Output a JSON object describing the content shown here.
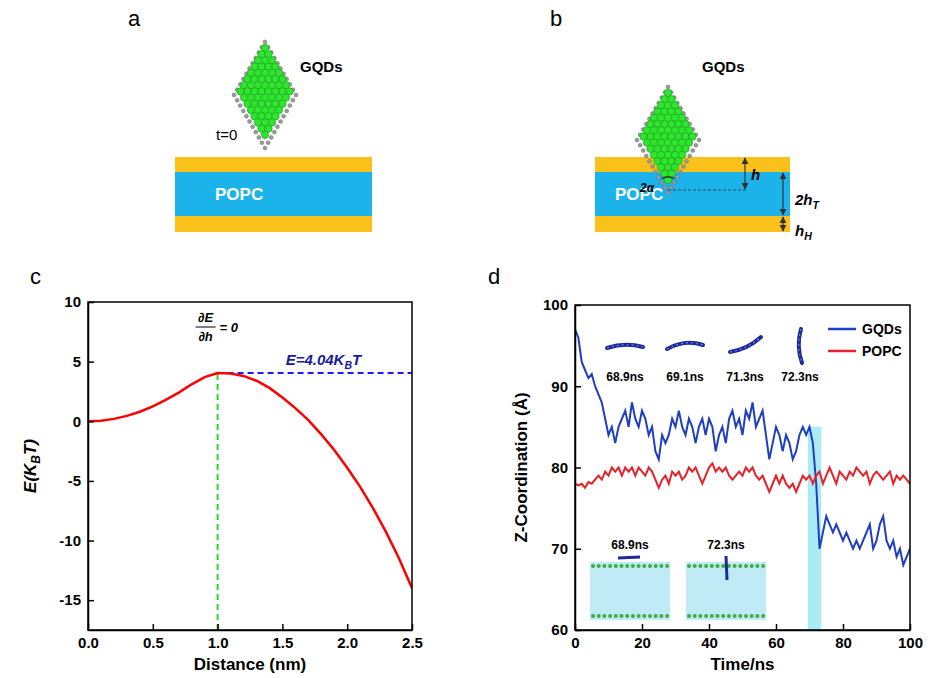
{
  "panel_labels": [
    "a",
    "b",
    "c",
    "d"
  ],
  "diagrams": [
    {
      "molecule": "GQDs",
      "time": "t=0",
      "membrane": "POPC"
    },
    {
      "molecule": "GQDs",
      "membrane": "POPC",
      "angle": "2α",
      "depth": "h",
      "thickness": [
        {
          "text": "2h"
        },
        {
          "text": "T",
          "sub": true
        }
      ],
      "head": [
        {
          "text": "h"
        },
        {
          "text": "H",
          "sub": true
        }
      ]
    }
  ],
  "chart_data": [
    {
      "type": "line",
      "xlabel": "Distance (nm)",
      "ylabel": [
        {
          "text": "E(K"
        },
        {
          "text": "B",
          "sub": true
        },
        {
          "text": "T)"
        }
      ],
      "x": [
        0,
        0.1,
        0.2,
        0.3,
        0.4,
        0.5,
        0.6,
        0.7,
        0.8,
        0.9,
        1.0,
        1.1,
        1.2,
        1.3,
        1.4,
        1.5,
        1.6,
        1.7,
        1.8,
        1.9,
        2.0,
        2.1,
        2.2,
        2.3,
        2.4,
        2.5
      ],
      "values": [
        0,
        0.05,
        0.2,
        0.45,
        0.8,
        1.25,
        1.8,
        2.4,
        3.1,
        3.7,
        4.04,
        4.0,
        3.8,
        3.4,
        2.8,
        2.0,
        1.1,
        0.1,
        -1.1,
        -2.4,
        -3.9,
        -5.5,
        -7.3,
        -9.3,
        -11.5,
        -14.0
      ],
      "color": "#ff0000",
      "xlim": [
        0,
        2.5
      ],
      "xticks": [
        {
          "value": 0,
          "label": "0.0"
        },
        0.5,
        {
          "value": 1,
          "label": "1.0"
        },
        1.5,
        {
          "value": 2,
          "label": "2.0"
        },
        2.5
      ],
      "ylim": [
        -17.5,
        10
      ],
      "yticks": [
        -15,
        -10,
        -5,
        0,
        5,
        10
      ],
      "vline": {
        "x": 1.0,
        "y": 4.04,
        "color": "#22dd22",
        "line_style": "dashed"
      },
      "hline": {
        "x": 1.0,
        "y": 4.04,
        "color": "#1a1aff",
        "line_style": "dashed"
      },
      "annotations": [
        {
          "numerator": "∂E",
          "denominator": "∂h",
          "text": "= 0"
        },
        {
          "segments": [
            {
              "text": "E=4.04K"
            },
            {
              "text": "B",
              "sub": true
            },
            {
              "text": "T"
            }
          ]
        }
      ]
    },
    {
      "type": "line",
      "xlabel": "Time/ns",
      "ylabel": "Z-Coordination (Å)",
      "x": [
        0,
        1,
        2,
        3,
        4,
        5,
        6,
        7,
        8,
        9,
        10,
        11,
        12,
        13,
        14,
        15,
        16,
        17,
        18,
        19,
        20,
        21,
        22,
        23,
        24,
        25,
        26,
        27,
        28,
        29,
        30,
        31,
        32,
        33,
        34,
        35,
        36,
        37,
        38,
        39,
        40,
        41,
        42,
        43,
        44,
        45,
        46,
        47,
        48,
        49,
        50,
        51,
        52,
        53,
        54,
        55,
        56,
        57,
        58,
        59,
        60,
        61,
        62,
        63,
        64,
        65,
        66,
        67,
        68,
        69,
        70,
        71,
        72,
        73,
        74,
        75,
        76,
        77,
        78,
        79,
        80,
        81,
        82,
        83,
        84,
        85,
        86,
        87,
        88,
        89,
        90,
        91,
        92,
        93,
        94,
        95,
        96,
        97,
        98,
        99,
        100
      ],
      "series": [
        {
          "name": "GQDs",
          "color": "#1f3fc0",
          "values": [
            97,
            96,
            93,
            92,
            91,
            91.5,
            90,
            89,
            88,
            86,
            84,
            85,
            83,
            85,
            86,
            87,
            85,
            88,
            86,
            85,
            87,
            86,
            84,
            85,
            82,
            81,
            84,
            83,
            84,
            86,
            85,
            87,
            85,
            84,
            86,
            85,
            83,
            85,
            86,
            84,
            86,
            85,
            82,
            84,
            85,
            83,
            86,
            87,
            85,
            86,
            84,
            87,
            86,
            88,
            85,
            86,
            87,
            84,
            81,
            83,
            85,
            84,
            82,
            84,
            83,
            81,
            82,
            84,
            85,
            84,
            85,
            83,
            78,
            70,
            72,
            74,
            73,
            72,
            73,
            72,
            71,
            72,
            71,
            70,
            71,
            70,
            71,
            72,
            73,
            70,
            71,
            73,
            74,
            71,
            70,
            71,
            69,
            70,
            68,
            69,
            70
          ]
        },
        {
          "name": "POPC",
          "color": "#e8222a",
          "values": [
            78,
            77.8,
            78,
            77.5,
            78.2,
            78,
            78.5,
            79,
            78.5,
            79.5,
            79,
            80,
            79.5,
            80,
            79,
            80,
            79.5,
            80,
            79,
            80,
            79.5,
            79,
            80,
            79.5,
            78.5,
            77.5,
            78.5,
            79,
            78,
            79.5,
            79,
            79.5,
            78.5,
            79,
            80,
            79.5,
            80,
            79,
            78,
            79,
            80,
            80.5,
            79.5,
            80,
            79.5,
            80,
            79,
            78.5,
            79,
            79.5,
            79,
            80,
            79.5,
            80,
            79,
            78.5,
            79,
            78,
            77,
            78,
            79,
            78,
            79,
            78,
            77.5,
            78,
            77,
            78,
            79,
            78.5,
            79,
            78,
            79,
            79.5,
            78,
            79,
            80,
            79,
            78,
            79.5,
            79,
            78.5,
            79.5,
            79,
            80,
            79.5,
            79,
            79.5,
            78,
            79,
            79.5,
            79,
            78.5,
            79,
            79.5,
            78,
            79,
            78.5,
            79,
            78.5,
            78
          ]
        }
      ],
      "xlim": [
        0,
        100
      ],
      "xticks": [
        0,
        20,
        40,
        60,
        80,
        100
      ],
      "ylim": [
        60,
        100
      ],
      "yticks": [
        60,
        70,
        80,
        90,
        100
      ],
      "legend": "upper right",
      "highlight": {
        "x": [
          69.5,
          73.5
        ],
        "y": [
          60,
          85
        ]
      },
      "snapshots": {
        "top": [
          "68.9ns",
          "69.1ns",
          "71.3ns",
          "72.3ns"
        ],
        "bottom": [
          "68.9ns",
          "72.3ns"
        ]
      }
    }
  ]
}
